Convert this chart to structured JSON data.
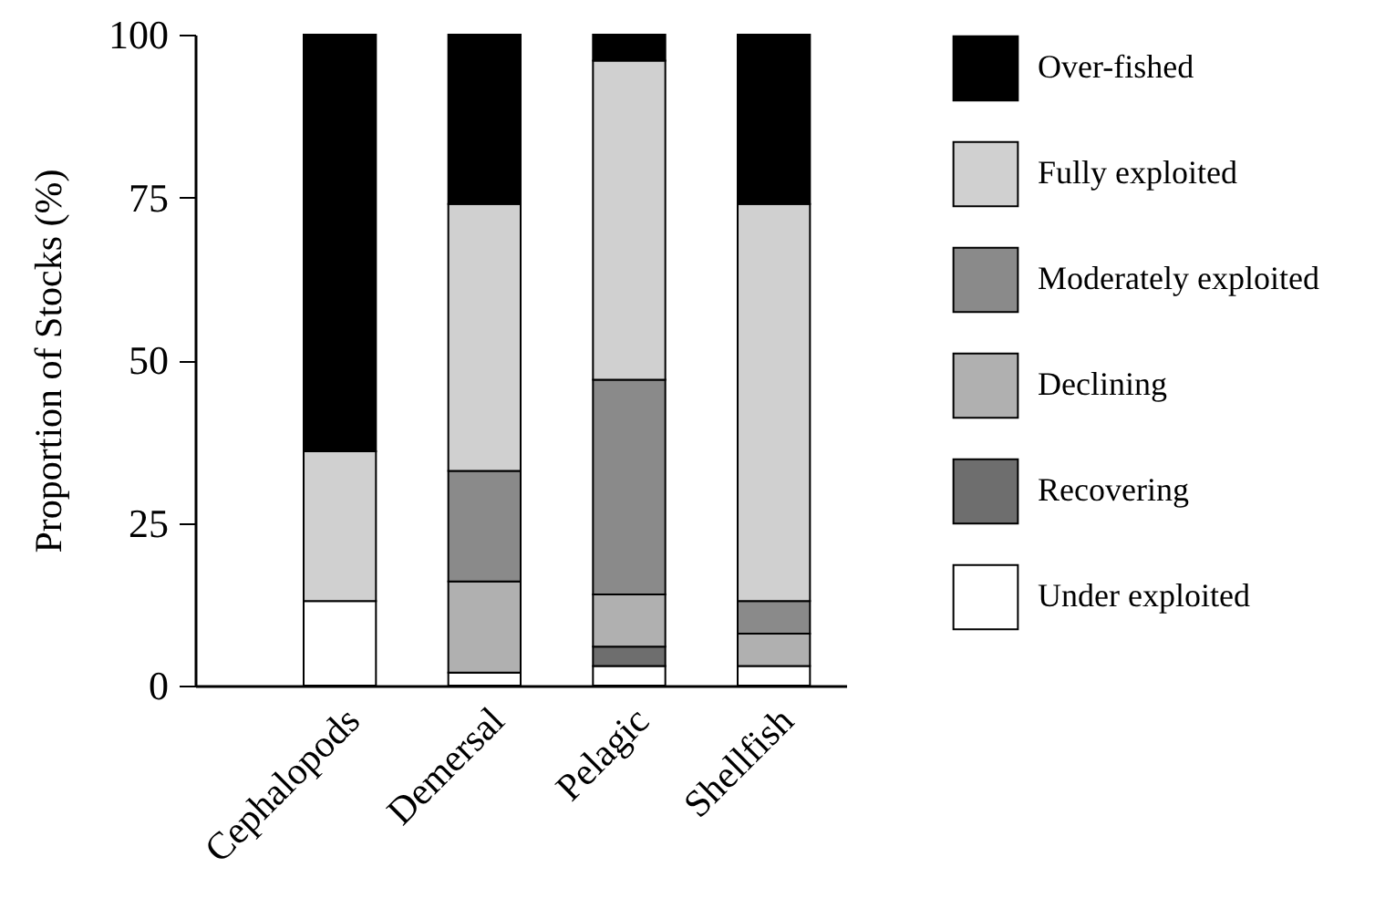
{
  "chart_data": {
    "type": "bar",
    "stacked": true,
    "ylabel": "Proportion of Stocks (%)",
    "categories": [
      "Cephalopods",
      "Demersal",
      "Pelagic",
      "Shellfish"
    ],
    "ylim": [
      0,
      100
    ],
    "yticks": [
      0,
      25,
      50,
      75,
      100
    ],
    "grid": false,
    "legend": "right",
    "series": [
      {
        "name": "Under exploited",
        "color": "#ffffff",
        "values": [
          13,
          2,
          3,
          3
        ]
      },
      {
        "name": "Recovering",
        "color": "#6e6e6e",
        "values": [
          0,
          0,
          3,
          0
        ]
      },
      {
        "name": "Declining",
        "color": "#b0b0b0",
        "values": [
          0,
          14,
          8,
          5
        ]
      },
      {
        "name": "Moderately exploited",
        "color": "#8a8a8a",
        "values": [
          0,
          17,
          33,
          5
        ]
      },
      {
        "name": "Fully exploited",
        "color": "#d0d0d0",
        "values": [
          23,
          41,
          49,
          61
        ]
      },
      {
        "name": "Over-fished",
        "color": "#000000",
        "values": [
          64,
          26,
          4,
          26
        ]
      }
    ]
  }
}
